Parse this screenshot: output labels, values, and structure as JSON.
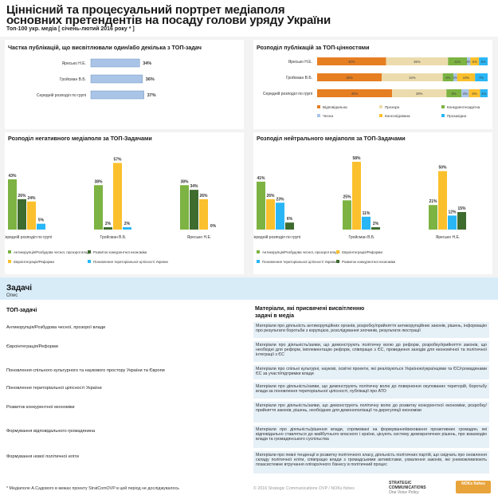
{
  "header": {
    "title_line1": "Ціннісний та процесуальний портрет медіаполя",
    "title_line2": "основних претендентів на посаду голови уряду України",
    "subtitle": "Топ-100 укр. медіа [ січень-лютий 2016 року * ]"
  },
  "colors": {
    "green": "#7cb342",
    "orange": "#e67e22",
    "beige": "#ecdcad",
    "yellow": "#fbc02d",
    "darkgreen": "#3e6b2e",
    "blue": "#29b6f6",
    "lightblue": "#a9c4e6",
    "navy": "#2e4a7a"
  },
  "chart_data": [
    {
      "id": "share",
      "type": "bar",
      "title": "Частка публікацій, що висвітлювали один/або декілька з ТОП-задач",
      "categories": [
        "Яресько Н.Е.",
        "Гройсман В.Б.",
        "Середній розподіл по групі"
      ],
      "values": [
        34,
        36,
        37
      ],
      "value_labels": [
        "34%",
        "36%",
        "37%"
      ],
      "xlim": [
        0,
        100
      ]
    },
    {
      "id": "values",
      "type": "bar",
      "stacked": true,
      "title": "Розподіл публікацій за ТОП-цінностями",
      "categories": [
        "Яресько Н.Е.",
        "Гройсман В.Б.",
        "Середній розподіл по групі"
      ],
      "series": [
        {
          "name": "Відповідальна",
          "color": "#e67e22",
          "values": [
            40,
            36,
            40
          ],
          "labels": [
            "40%",
            "36%",
            "40%"
          ]
        },
        {
          "name": "Прозора",
          "color": "#ecdcad",
          "values": [
            36,
            34,
            29
          ],
          "labels": [
            "36%",
            "34%",
            "29%"
          ]
        },
        {
          "name": "Конкурентноздатна",
          "color": "#7cb342",
          "values": [
            11,
            6,
            8
          ],
          "labels": [
            "11%",
            "6%",
            "8%"
          ]
        },
        {
          "name": "Чесна",
          "color": "#a9c4e6",
          "values": [
            2,
            2,
            4
          ],
          "labels": [
            "2%",
            "2%",
            "4%"
          ]
        },
        {
          "name": "Консолідована",
          "color": "#fbc02d",
          "values": [
            5,
            10,
            6
          ],
          "labels": [
            "5%",
            "10%",
            "6%"
          ]
        },
        {
          "name": "Прозахідна",
          "color": "#29b6f6",
          "values": [
            5,
            7,
            4
          ],
          "labels": [
            "5%",
            "7%",
            "4%"
          ]
        }
      ],
      "xlim": [
        0,
        100
      ]
    },
    {
      "id": "negative",
      "type": "bar",
      "title": "Розподіл негативного медіаполя за ТОП-Задачами",
      "categories": [
        "Середній розподіл по групі",
        "Гройсман В.Б.",
        "Яресько Н.Е."
      ],
      "series": [
        {
          "name": "Антикорупція/Розбудова чесної, прозорої влади",
          "color": "#7cb342",
          "values": [
            43,
            38,
            38
          ],
          "labels": [
            "43%",
            "38%",
            "38%"
          ]
        },
        {
          "name": "Розвиток конкурентної економіки",
          "color": "#3e6b2e",
          "values": [
            26,
            2,
            34
          ],
          "labels": [
            "26%",
            "2%",
            "34%"
          ]
        },
        {
          "name": "Євроінтеграція/Реформи",
          "color": "#fbc02d",
          "values": [
            24,
            57,
            26
          ],
          "labels": [
            "24%",
            "57%",
            "26%"
          ]
        },
        {
          "name": "Поновлення територіальної цілісності України",
          "color": "#29b6f6",
          "values": [
            5,
            2,
            0
          ],
          "labels": [
            "5%",
            "2%",
            "0%"
          ]
        }
      ],
      "ylim": [
        0,
        60
      ]
    },
    {
      "id": "neutral",
      "type": "bar",
      "title": "Розподіл нейтрального медіаполя за ТОП-Задачами",
      "categories": [
        "Середній розподіл по групі",
        "Гройсман В.Б.",
        "Яресько Н.Е."
      ],
      "series": [
        {
          "name": "Антикорупція/Розбудова чесної, прозорої влади",
          "color": "#7cb342",
          "values": [
            41,
            25,
            21
          ],
          "labels": [
            "41%",
            "25%",
            "21%"
          ]
        },
        {
          "name": "Євроінтеграція/Реформи",
          "color": "#fbc02d",
          "values": [
            26,
            58,
            50
          ],
          "labels": [
            "26%",
            "58%",
            "50%"
          ]
        },
        {
          "name": "Поновлення територіальної цілісності України",
          "color": "#29b6f6",
          "values": [
            23,
            11,
            12
          ],
          "labels": [
            "23%",
            "11%",
            "12%"
          ]
        },
        {
          "name": "Розвиток конкурентної економіки",
          "color": "#3e6b2e",
          "values": [
            6,
            2,
            15
          ],
          "labels": [
            "6%",
            "2%",
            "15%"
          ]
        }
      ],
      "ylim": [
        0,
        60
      ]
    }
  ],
  "tasks": {
    "title": "Задачі",
    "subtitle": "Опис",
    "col_left": "ТОП-задачі",
    "col_right": "Матеріали, які присвячені висвітленню задачі в медіа",
    "rows": [
      {
        "label": "Антикорупція/Розбудова чесної, прозорої влади",
        "desc": "Матеріали про діяльність антикорупційних органів, розробку/прийняття антикорупційних законів, рішень, інформацію про результати боротьби з корупцією, розслідування злочинів, результати люстрації"
      },
      {
        "label": "Євроінтеграція/Реформи",
        "desc": "Матеріали про діяльність/заяви, що демонструють політичну волю до реформ, розробку/прийняття законів, що необхідні для реформ, імплементацію реформ, співпрацю з ЄС, проведення заходів для економічної та політичної інтеграції з ЄС"
      },
      {
        "label": "Поновлення спільного культурного та наукового простору України та Європи",
        "desc": "Матеріали про спільні культурні, наукові, освітні проекти, які реалізуються Україною/українцями та ЄС/громадянами ЄС за участі/підтримки влади"
      },
      {
        "label": "Поновлення територіальної цілісності України",
        "desc": "Матеріали про діяльність/заяви, що демонструють політичну волю до повернення окупованих територій, боротьбу влади за поновлення територіальної цілісності, публікації про АТО"
      },
      {
        "label": "Розвиток конкурентної економіки",
        "desc": "Матеріали про діяльність/заяви, що демонструють політичну волю до розвитку конкурентної економіки, розробку/прийняття законів, рішень, необхідних для демонополізації та дерегуляції економіки"
      },
      {
        "label": "Формування відповідального громадянина",
        "desc": "Матеріали про діяльність/рішення влади, спрямовані на формування/виховання проактивних громадян, які відповідально ставляться до майбутнього власного і країни, цінують систему демократичних рішень, про взаємодію влади та громадянського суспільства"
      },
      {
        "label": "Формування нової політичної еліти",
        "desc": "Матеріали про певні тенденції в розвитку політичного класу, діяльність політичних партій, що свідчать про оновлення складу політичної еліти, співпрацю влади з громадськими активістами, ухвалення законів, які унеможливлюють позасистемне втручання олігархічного бізнесу в політичний процес"
      }
    ]
  },
  "footer": {
    "note": "* Медіаполе А.Садового в межах проекту StratComOVP в цей період не досліджувалось",
    "copyright": "© 2016 Strategic Communications OVP / NOKs fishes",
    "logo1": "STRATEGIC COMMUNICATIONS",
    "logo1_sub": "One Voice Policy",
    "logo2": "NOKs fishes"
  }
}
